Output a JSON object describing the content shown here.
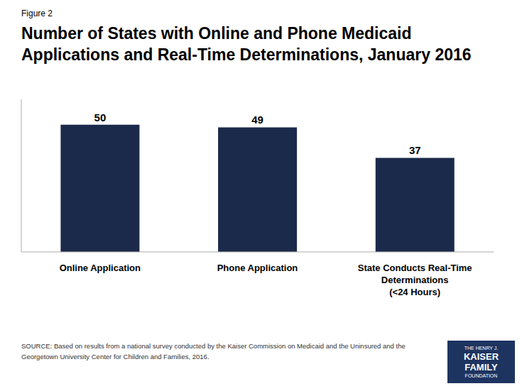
{
  "chart_data": {
    "type": "bar",
    "title": "Number of States with Online and Phone Medicaid\nApplications and Real-Time Determinations, January 2016",
    "categories": [
      "Online Application",
      "Phone Application",
      "State Conducts Real-Time\nDeterminations\n(<24 Hours)"
    ],
    "values": [
      50,
      49,
      37
    ],
    "value_labels": [
      "50",
      "49",
      "37"
    ],
    "color": "#1b2a4a",
    "ylim": [
      0,
      60
    ],
    "data_labels": true,
    "tick_labels": "x",
    "grid": false,
    "annotations": [
      "Figure 2",
      "SOURCE: Based on results from a national survey conducted by the Kaiser Commission on Medicaid and the Uninsured and the\nGeorgetown University Center for Children and Families, 2016.",
      "THE HENRY J.",
      "KAISER",
      "FAMILY",
      "FOUNDATION"
    ]
  }
}
